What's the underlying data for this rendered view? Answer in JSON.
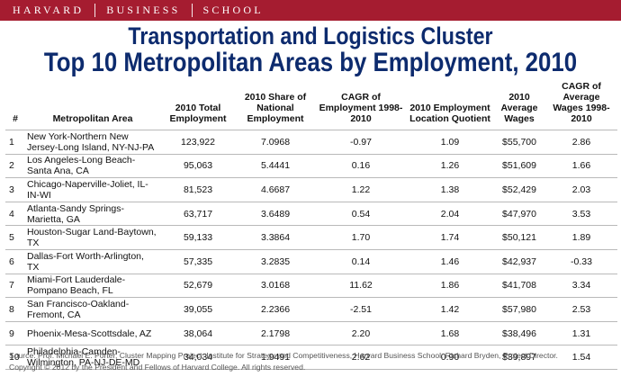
{
  "header": {
    "brand_parts": [
      "HARVARD",
      "BUSINESS",
      "SCHOOL"
    ]
  },
  "title_line1": "Transportation and Logistics Cluster",
  "title_line2": "Top 10 Metropolitan Areas by Employment, 2010",
  "table": {
    "columns": [
      "#",
      "Metropolitan Area",
      "2010 Total Employment",
      "2010 Share of National Employment",
      "CAGR of Employment 1998-2010",
      "2010 Employment Location Quotient",
      "2010 Average Wages",
      "CAGR of Average Wages 1998-2010"
    ],
    "rows": [
      [
        "1",
        "New York-Northern New Jersey-Long Island, NY-NJ-PA",
        "123,922",
        "7.0968",
        "-0.97",
        "1.09",
        "$55,700",
        "2.86"
      ],
      [
        "2",
        "Los Angeles-Long Beach-Santa Ana, CA",
        "95,063",
        "5.4441",
        "0.16",
        "1.26",
        "$51,609",
        "1.66"
      ],
      [
        "3",
        "Chicago-Naperville-Joliet, IL-IN-WI",
        "81,523",
        "4.6687",
        "1.22",
        "1.38",
        "$52,429",
        "2.03"
      ],
      [
        "4",
        "Atlanta-Sandy Springs-Marietta, GA",
        "63,717",
        "3.6489",
        "0.54",
        "2.04",
        "$47,970",
        "3.53"
      ],
      [
        "5",
        "Houston-Sugar Land-Baytown, TX",
        "59,133",
        "3.3864",
        "1.70",
        "1.74",
        "$50,121",
        "1.89"
      ],
      [
        "6",
        "Dallas-Fort Worth-Arlington, TX",
        "57,335",
        "3.2835",
        "0.14",
        "1.46",
        "$42,937",
        "-0.33"
      ],
      [
        "7",
        "Miami-Fort Lauderdale-Pompano Beach, FL",
        "52,679",
        "3.0168",
        "11.62",
        "1.86",
        "$41,708",
        "3.34"
      ],
      [
        "8",
        "San Francisco-Oakland-Fremont, CA",
        "39,055",
        "2.2366",
        "-2.51",
        "1.42",
        "$57,980",
        "2.53"
      ],
      [
        "9",
        "Phoenix-Mesa-Scottsdale, AZ",
        "38,064",
        "2.1798",
        "2.20",
        "1.68",
        "$38,496",
        "1.31"
      ],
      [
        "10",
        "Philadelphia-Camden-Wilmington, PA-NJ-DE-MD",
        "34,034",
        "1.9491",
        "2.62",
        "0.90",
        "$39,897",
        "1.54"
      ]
    ]
  },
  "footer": {
    "source": "Source: Prof. Michael E. Porter, Cluster Mapping Project, Institute for Strategy and Competitiveness, Harvard Business School; Richard Bryden, Project Director.",
    "copyright": "Copyright © 2012 by the President and Fellows of Harvard College. All rights reserved."
  }
}
